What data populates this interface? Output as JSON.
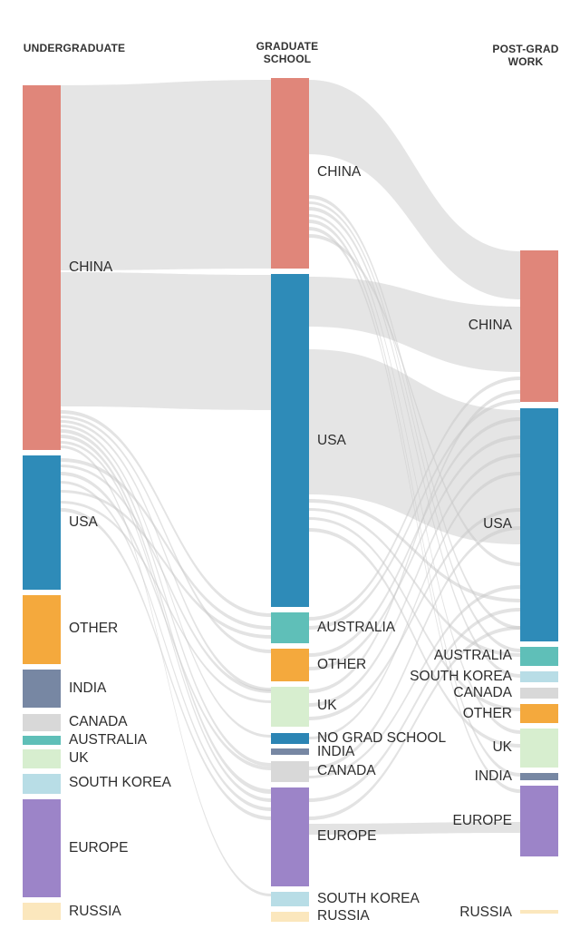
{
  "columns": [
    {
      "id": "undergrad",
      "title_lines": [
        "UNDERGRADUATE"
      ]
    },
    {
      "id": "grad",
      "title_lines": [
        "GRADUATE",
        "SCHOOL"
      ]
    },
    {
      "id": "work",
      "title_lines": [
        "POST-GRAD",
        "WORK"
      ]
    }
  ],
  "colors": {
    "CHINA": "#e0867a",
    "USA": "#2e8bb8",
    "OTHER": "#f4a93d",
    "INDIA": "#7787a3",
    "CANADA": "#d8d8d8",
    "AUSTRALIA": "#5fbfb8",
    "UK": "#d7eecf",
    "SOUTH KOREA": "#b8dde6",
    "EUROPE": "#9c84c8",
    "RUSSIA": "#fbe7bd",
    "NO GRAD SCHOOL": "#2c85b4"
  },
  "undergrad_nodes": [
    "CHINA",
    "USA",
    "OTHER",
    "INDIA",
    "CANADA",
    "AUSTRALIA",
    "UK",
    "SOUTH KOREA",
    "EUROPE",
    "RUSSIA"
  ],
  "grad_nodes": [
    "CHINA",
    "USA",
    "AUSTRALIA",
    "OTHER",
    "UK",
    "NO GRAD SCHOOL",
    "INDIA",
    "CANADA",
    "EUROPE",
    "SOUTH KOREA",
    "RUSSIA"
  ],
  "work_nodes": [
    "CHINA",
    "USA",
    "AUSTRALIA",
    "SOUTH KOREA",
    "CANADA",
    "OTHER",
    "UK",
    "INDIA",
    "EUROPE",
    "RUSSIA"
  ]
}
